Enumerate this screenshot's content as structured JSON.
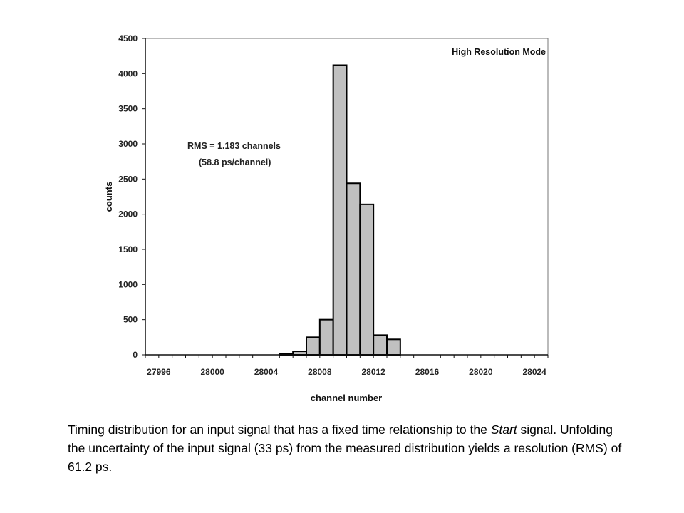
{
  "chart_data": {
    "type": "bar",
    "xlabel": "channel number",
    "ylabel": "counts",
    "ylim": [
      0,
      4500
    ],
    "xlim": [
      27995,
      28025
    ],
    "yticks": [
      0,
      500,
      1000,
      1500,
      2000,
      2500,
      3000,
      3500,
      4000,
      4500
    ],
    "xticks": [
      27996,
      28000,
      28004,
      28008,
      28012,
      28016,
      28020,
      28024
    ],
    "bins": [
      {
        "x": 28006,
        "y": 20
      },
      {
        "x": 28007,
        "y": 50
      },
      {
        "x": 28008,
        "y": 250
      },
      {
        "x": 28009,
        "y": 500
      },
      {
        "x": 28010,
        "y": 4120
      },
      {
        "x": 28011,
        "y": 2440
      },
      {
        "x": 28012,
        "y": 2140
      },
      {
        "x": 28013,
        "y": 280
      },
      {
        "x": 28014,
        "y": 220
      }
    ],
    "bar_color": "#c0c0c0",
    "grid": false,
    "annotations": [
      "RMS = 1.183 channels",
      "(58.8 ps/channel)"
    ],
    "mode_label": "High Resolution Mode"
  },
  "caption": {
    "part1": "Timing distribution for an input signal that has a fixed time relationship to the ",
    "italic": "Start",
    "part2": " signal.  Unfolding the uncertainty of the input signal (33 ps) from the measured distribution yields a resolution (RMS) of 61.2 ps."
  }
}
